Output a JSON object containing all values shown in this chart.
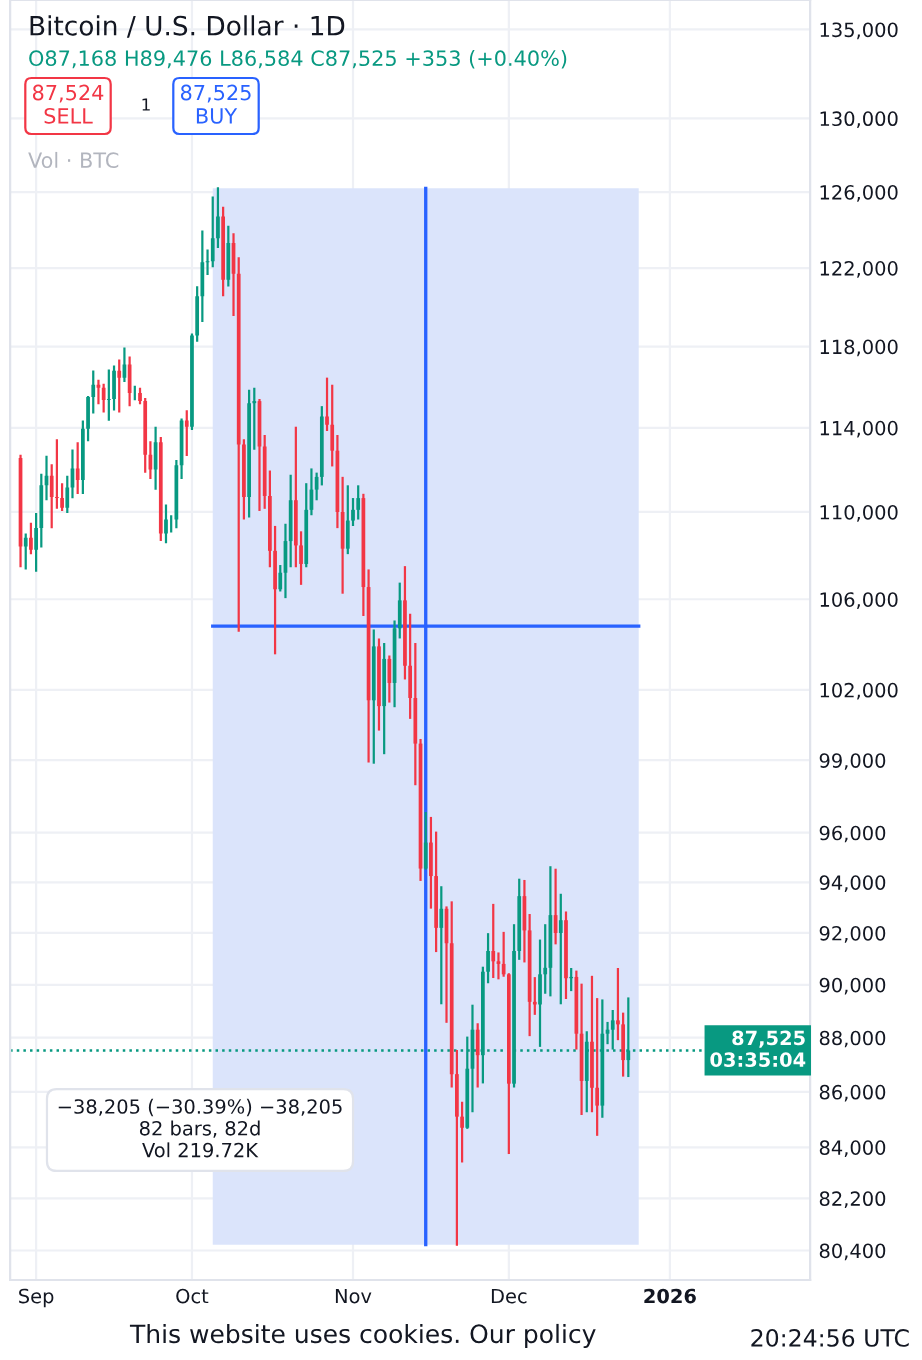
{
  "chart_data": {
    "type": "candlestick",
    "title": "Bitcoin / U.S. Dollar · 1D",
    "subtitle": "O87,168 H89,476 L86,584 C87,525 +353 (+0.40%)",
    "x": [
      "2025-08-29",
      "2025-08-30",
      "2025-08-31",
      "2025-09-01",
      "2025-09-02",
      "2025-09-03",
      "2025-09-04",
      "2025-09-05",
      "2025-09-06",
      "2025-09-07",
      "2025-09-08",
      "2025-09-09",
      "2025-09-10",
      "2025-09-11",
      "2025-09-12",
      "2025-09-13",
      "2025-09-14",
      "2025-09-15",
      "2025-09-16",
      "2025-09-17",
      "2025-09-18",
      "2025-09-19",
      "2025-09-20",
      "2025-09-21",
      "2025-09-22",
      "2025-09-23",
      "2025-09-24",
      "2025-09-25",
      "2025-09-26",
      "2025-09-27",
      "2025-09-28",
      "2025-09-29",
      "2025-09-30",
      "2025-10-01",
      "2025-10-02",
      "2025-10-03",
      "2025-10-04",
      "2025-10-05",
      "2025-10-06",
      "2025-10-07",
      "2025-10-08",
      "2025-10-09",
      "2025-10-10",
      "2025-10-11",
      "2025-10-12",
      "2025-10-13",
      "2025-10-14",
      "2025-10-15",
      "2025-10-16",
      "2025-10-17",
      "2025-10-18",
      "2025-10-19",
      "2025-10-20",
      "2025-10-21",
      "2025-10-22",
      "2025-10-23",
      "2025-10-24",
      "2025-10-25",
      "2025-10-26",
      "2025-10-27",
      "2025-10-28",
      "2025-10-29",
      "2025-10-30",
      "2025-10-31",
      "2025-11-01",
      "2025-11-02",
      "2025-11-03",
      "2025-11-04",
      "2025-11-05",
      "2025-11-06",
      "2025-11-07",
      "2025-11-08",
      "2025-11-09",
      "2025-11-10",
      "2025-11-11",
      "2025-11-12",
      "2025-11-13",
      "2025-11-14",
      "2025-11-15",
      "2025-11-16",
      "2025-11-17",
      "2025-11-18",
      "2025-11-19",
      "2025-11-20",
      "2025-11-21",
      "2025-11-22",
      "2025-11-23",
      "2025-11-24",
      "2025-11-25",
      "2025-11-26",
      "2025-11-27",
      "2025-11-28",
      "2025-11-29",
      "2025-11-30",
      "2025-12-01",
      "2025-12-02",
      "2025-12-03",
      "2025-12-04",
      "2025-12-05",
      "2025-12-06",
      "2025-12-07",
      "2025-12-08",
      "2025-12-09",
      "2025-12-10",
      "2025-12-11",
      "2025-12-12",
      "2025-12-13",
      "2025-12-14",
      "2025-12-15",
      "2025-12-16",
      "2025-12-17",
      "2025-12-18",
      "2025-12-19",
      "2025-12-20",
      "2025-12-21",
      "2025-12-22",
      "2025-12-23",
      "2025-12-24"
    ],
    "ohlc": [
      [
        112550,
        112650,
        107500,
        108400
      ],
      [
        108400,
        108950,
        107400,
        108800
      ],
      [
        108800,
        109450,
        108100,
        108250
      ],
      [
        108250,
        109900,
        107300,
        109250
      ],
      [
        109250,
        111750,
        108400,
        111250
      ],
      [
        111250,
        112600,
        110600,
        111700
      ],
      [
        111700,
        112200,
        109300,
        110700
      ],
      [
        110700,
        113400,
        110200,
        110650
      ],
      [
        110650,
        111300,
        110100,
        110200
      ],
      [
        110200,
        111650,
        110000,
        111150
      ],
      [
        111150,
        112900,
        110700,
        112050
      ],
      [
        112050,
        113250,
        110900,
        111500
      ],
      [
        111500,
        114300,
        110900,
        113950
      ],
      [
        113950,
        115500,
        113400,
        115500
      ],
      [
        115500,
        116750,
        114750,
        116100
      ],
      [
        116100,
        116300,
        115200,
        115950
      ],
      [
        115950,
        116100,
        114800,
        115350
      ],
      [
        115350,
        116800,
        114400,
        115400
      ],
      [
        115400,
        117000,
        114900,
        116800
      ],
      [
        116800,
        117300,
        114800,
        116450
      ],
      [
        116450,
        117900,
        116300,
        117100
      ],
      [
        117100,
        117450,
        115100,
        115700
      ],
      [
        115700,
        116000,
        115400,
        115700
      ],
      [
        115700,
        115900,
        115200,
        115300
      ],
      [
        115300,
        115400,
        111900,
        112700
      ],
      [
        112700,
        113300,
        111600,
        112000
      ],
      [
        112000,
        114000,
        111100,
        113300
      ],
      [
        113300,
        113500,
        108700,
        109000
      ],
      [
        109000,
        110300,
        108600,
        109650
      ],
      [
        109650,
        109800,
        109100,
        109650
      ],
      [
        109650,
        112400,
        109300,
        112200
      ],
      [
        112200,
        114400,
        111600,
        114350
      ],
      [
        114350,
        114800,
        112700,
        114050
      ],
      [
        114050,
        118600,
        113950,
        118550
      ],
      [
        118550,
        121000,
        118300,
        120550
      ],
      [
        120550,
        123900,
        119300,
        122300
      ],
      [
        122300,
        122900,
        121700,
        122350
      ],
      [
        122350,
        125700,
        122100,
        123550
      ],
      [
        123550,
        126200,
        123100,
        124700
      ],
      [
        124700,
        125150,
        120600,
        121400
      ],
      [
        121400,
        124150,
        121100,
        123300
      ],
      [
        123300,
        123750,
        119600,
        121700
      ],
      [
        121700,
        122500,
        104600,
        113200
      ],
      [
        113200,
        113400,
        109700,
        110700
      ],
      [
        110700,
        115800,
        109800,
        115200
      ],
      [
        115200,
        115900,
        113000,
        115300
      ],
      [
        115300,
        115350,
        110100,
        113100
      ],
      [
        113100,
        113600,
        110200,
        110750
      ],
      [
        110750,
        111900,
        107500,
        108200
      ],
      [
        108200,
        109300,
        103600,
        106450
      ],
      [
        106450,
        107500,
        106400,
        107200
      ],
      [
        107200,
        109400,
        106100,
        108650
      ],
      [
        108650,
        111700,
        107500,
        110550
      ],
      [
        110550,
        114000,
        107500,
        108450
      ],
      [
        108450,
        109050,
        106700,
        107600
      ],
      [
        107600,
        111300,
        107500,
        110100
      ],
      [
        110100,
        112000,
        109900,
        111050
      ],
      [
        111050,
        111800,
        110600,
        111650
      ],
      [
        111650,
        115000,
        111300,
        114550
      ],
      [
        114550,
        116400,
        113900,
        114150
      ],
      [
        114150,
        116050,
        112200,
        112900
      ],
      [
        112900,
        113600,
        109300,
        110000
      ],
      [
        110000,
        111600,
        106300,
        108300
      ],
      [
        108300,
        111200,
        108100,
        109600
      ],
      [
        109600,
        110600,
        109400,
        110100
      ],
      [
        110100,
        111200,
        109700,
        110650
      ],
      [
        110650,
        110800,
        105300,
        106550
      ],
      [
        106550,
        107300,
        98950,
        101550
      ],
      [
        101550,
        104600,
        98900,
        103900
      ],
      [
        103900,
        104200,
        100300,
        101300
      ],
      [
        101300,
        104000,
        99300,
        103350
      ],
      [
        103350,
        103450,
        101500,
        102300
      ],
      [
        102300,
        105000,
        101300,
        104700
      ],
      [
        104700,
        106700,
        104300,
        105950
      ],
      [
        105950,
        107450,
        102500,
        103050
      ],
      [
        103050,
        105300,
        100800,
        101650
      ],
      [
        101650,
        104000,
        98000,
        99700
      ],
      [
        99700,
        99850,
        94100,
        94550
      ],
      [
        94550,
        96800,
        94550,
        95600
      ],
      [
        95600,
        96600,
        93000,
        94250
      ],
      [
        94250,
        96000,
        91300,
        92200
      ],
      [
        92200,
        93800,
        89300,
        92950
      ],
      [
        92950,
        93000,
        88600,
        91600
      ],
      [
        91600,
        93200,
        86200,
        86650
      ],
      [
        86650,
        87500,
        80600,
        85100
      ],
      [
        85100,
        85600,
        83500,
        84700
      ],
      [
        84700,
        88000,
        84700,
        86850
      ],
      [
        86850,
        89200,
        85300,
        88300
      ],
      [
        88300,
        88500,
        86200,
        87350
      ],
      [
        87350,
        90650,
        86350,
        90500
      ],
      [
        90500,
        91950,
        90100,
        91300
      ],
      [
        91300,
        93100,
        90300,
        90900
      ],
      [
        90900,
        91200,
        90250,
        90800
      ],
      [
        90800,
        92000,
        90350,
        90400
      ],
      [
        90400,
        90400,
        83800,
        86300
      ],
      [
        86300,
        92300,
        86200,
        91300
      ],
      [
        91300,
        94100,
        91000,
        93450
      ],
      [
        93450,
        94050,
        90900,
        92100
      ],
      [
        92100,
        92700,
        88100,
        89350
      ],
      [
        89350,
        90250,
        88900,
        89250
      ],
      [
        89250,
        91700,
        87700,
        90400
      ],
      [
        90400,
        92300,
        89700,
        90650
      ],
      [
        90650,
        94600,
        89600,
        92700
      ],
      [
        92700,
        94500,
        91600,
        92000
      ],
      [
        92000,
        93500,
        89300,
        92500
      ],
      [
        92500,
        92800,
        89500,
        90250
      ],
      [
        90250,
        90600,
        89800,
        90300
      ],
      [
        90300,
        90500,
        87600,
        88150
      ],
      [
        88150,
        90000,
        85200,
        86400
      ],
      [
        86400,
        88200,
        85300,
        87850
      ],
      [
        87850,
        90300,
        85300,
        86150
      ],
      [
        86150,
        89450,
        84450,
        85500
      ],
      [
        85500,
        89400,
        85100,
        88150
      ],
      [
        88150,
        88550,
        87800,
        88300
      ],
      [
        88300,
        89000,
        87600,
        88650
      ],
      [
        88650,
        90600,
        87950,
        88500
      ],
      [
        88500,
        88900,
        86600,
        87168
      ],
      [
        87168,
        89476,
        86584,
        87525
      ]
    ],
    "xlim": [
      "2025-08-27",
      "2026-01-28"
    ],
    "xticks": [
      {
        "value": "2025-09-01",
        "label": "Sep"
      },
      {
        "value": "2025-10-01",
        "label": "Oct"
      },
      {
        "value": "2025-11-01",
        "label": "Nov"
      },
      {
        "value": "2025-12-01",
        "label": "Dec"
      },
      {
        "value": "2026-01-01",
        "label": "2026"
      }
    ],
    "log": true,
    "ylim": [
      79400,
      136700
    ],
    "yticks": [
      {
        "value": 80400,
        "label": "80,400"
      },
      {
        "value": 82200,
        "label": "82,200"
      },
      {
        "value": 84000,
        "label": "84,000"
      },
      {
        "value": 86000,
        "label": "86,000"
      },
      {
        "value": 88000,
        "label": "88,000"
      },
      {
        "value": 90000,
        "label": "90,000"
      },
      {
        "value": 92000,
        "label": "92,000"
      },
      {
        "value": 94000,
        "label": "94,000"
      },
      {
        "value": 96000,
        "label": "96,000"
      },
      {
        "value": 99000,
        "label": "99,000"
      },
      {
        "value": 102000,
        "label": "102,000"
      },
      {
        "value": 106000,
        "label": "106,000"
      },
      {
        "value": 110000,
        "label": "110,000"
      },
      {
        "value": 114000,
        "label": "114,000"
      },
      {
        "value": 118000,
        "label": "118,000"
      },
      {
        "value": 122000,
        "label": "122,000"
      },
      {
        "value": 126000,
        "label": "126,000"
      },
      {
        "value": 130000,
        "label": "130,000"
      },
      {
        "value": 135000,
        "label": "135,000"
      }
    ],
    "grid": true,
    "bands": [
      {
        "axis": "x",
        "from": "2025-10-05",
        "to": "2025-12-26",
        "color": "#dbe4fb"
      }
    ],
    "ref_lines": [
      {
        "axis": "y",
        "value": 104800,
        "color": "#2962ff",
        "line_style": "solid"
      },
      {
        "axis": "x",
        "value": "2025-11-15",
        "color": "#2962ff",
        "line_style": "solid"
      },
      {
        "axis": "y",
        "value": 87525,
        "label": "87,525\n03:35:04",
        "color": "#089981",
        "line_style": "dotted"
      }
    ],
    "annotations": [
      "87,524\nSELL",
      "1",
      "87,525\nBUY",
      "Vol · BTC",
      "−38,205 (−30.39%) −38,205\n82 bars, 82d\nVol 219.72K",
      "This website uses cookies. Our policy",
      "20:24:56 UTC"
    ]
  }
}
